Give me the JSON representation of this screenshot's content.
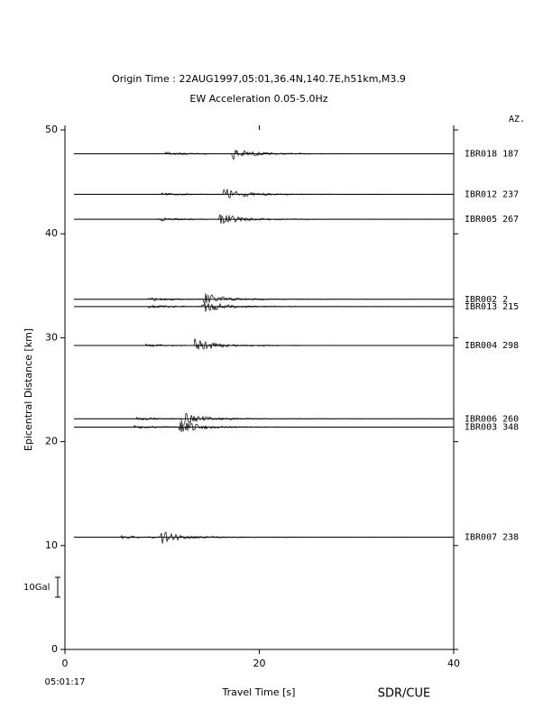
{
  "chart_data": {
    "type": "record-section",
    "title": "Origin Time : 22AUG1997,05:01,36.4N,140.7E,h51km,M3.9",
    "subtitle": "EW Acceleration 0.05-5.0Hz",
    "azimuth_header": "AZ.",
    "x_label": "Travel Time [s]",
    "y_label": "Epicentral Distance [km]",
    "start_time": "05:01:17",
    "scale_label": "10Gal",
    "credit": "SDR/CUE",
    "xlim": [
      0,
      40
    ],
    "xticks": [
      0,
      20,
      40
    ],
    "ylim": [
      0,
      50
    ],
    "yticks": [
      0,
      10,
      20,
      30,
      40,
      50
    ],
    "color": "#000000",
    "stations": [
      {
        "name": "IBR018",
        "azimuth": 187,
        "distance": 47.7
      },
      {
        "name": "IBR012",
        "azimuth": 237,
        "distance": 43.8
      },
      {
        "name": "IBR005",
        "azimuth": 267,
        "distance": 41.4
      },
      {
        "name": "IBR002",
        "azimuth": 2,
        "distance": 33.7
      },
      {
        "name": "IBR013",
        "azimuth": 215,
        "distance": 33.0
      },
      {
        "name": "IBR004",
        "azimuth": 298,
        "distance": 29.25
      },
      {
        "name": "IBR006",
        "azimuth": 260,
        "distance": 22.2
      },
      {
        "name": "IBR003",
        "azimuth": 348,
        "distance": 21.4
      },
      {
        "name": "IBR007",
        "azimuth": 238,
        "distance": 10.8
      }
    ]
  }
}
